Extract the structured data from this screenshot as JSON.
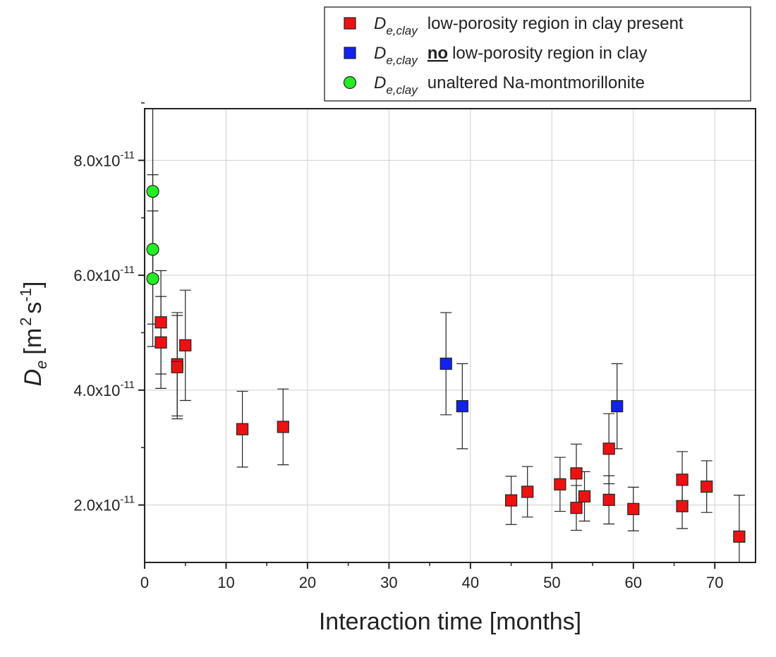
{
  "chart_data": {
    "type": "scatter",
    "xlabel": "Interaction time [months]",
    "ylabel": {
      "symbol": "D",
      "subscript": "e",
      "unit_open": "[m",
      "unit_exp1": "2",
      "unit_mid": "s",
      "unit_exp2": "-1",
      "unit_close": "]"
    },
    "xlim": [
      0,
      75
    ],
    "ylim": [
      1e-11,
      8.9e-11
    ],
    "grid": true,
    "x_ticks": [
      0,
      10,
      20,
      30,
      40,
      50,
      60,
      70
    ],
    "x_tick_labels": [
      "0",
      "10",
      "20",
      "30",
      "40",
      "50",
      "60",
      "70"
    ],
    "y_ticks": [
      {
        "value": 2e-11,
        "mantissa": "2.0x10",
        "exponent": "-11"
      },
      {
        "value": 4e-11,
        "mantissa": "4.0x10",
        "exponent": "-11"
      },
      {
        "value": 6e-11,
        "mantissa": "6.0x10",
        "exponent": "-11"
      },
      {
        "value": 8e-11,
        "mantissa": "8.0x10",
        "exponent": "-11"
      }
    ],
    "legend_position": "top-right, outside plot",
    "series": [
      {
        "name": "low-porosity region in clay present",
        "legend_symbol": "D",
        "legend_subscript": "e,clay",
        "legend_bold": "",
        "legend_text": "low-porosity region in clay present",
        "marker": "square",
        "color": "#ee1111",
        "points": [
          {
            "x": 2,
            "y": 5.18e-11,
            "err": 9e-12
          },
          {
            "x": 2,
            "y": 4.83e-11,
            "err": 8e-12
          },
          {
            "x": 4,
            "y": 4.45e-11,
            "err": 9e-12
          },
          {
            "x": 4,
            "y": 4.4e-11,
            "err": 9e-12
          },
          {
            "x": 5,
            "y": 4.78e-11,
            "err": 9.6e-12
          },
          {
            "x": 12,
            "y": 3.32e-11,
            "err": 6.6e-12
          },
          {
            "x": 17,
            "y": 3.36e-11,
            "err": 6.6e-12
          },
          {
            "x": 45,
            "y": 2.08e-11,
            "err": 4.2e-12
          },
          {
            "x": 47,
            "y": 2.23e-11,
            "err": 4.4e-12
          },
          {
            "x": 51,
            "y": 2.36e-11,
            "err": 4.7e-12
          },
          {
            "x": 53,
            "y": 2.55e-11,
            "err": 5.1e-12
          },
          {
            "x": 53,
            "y": 1.95e-11,
            "err": 3.9e-12
          },
          {
            "x": 54,
            "y": 2.15e-11,
            "err": 4.3e-12
          },
          {
            "x": 57,
            "y": 2.98e-11,
            "err": 6.1e-12
          },
          {
            "x": 57,
            "y": 2.09e-11,
            "err": 4.2e-12
          },
          {
            "x": 60,
            "y": 1.93e-11,
            "err": 3.8e-12
          },
          {
            "x": 66,
            "y": 2.44e-11,
            "err": 4.9e-12
          },
          {
            "x": 66,
            "y": 1.98e-11,
            "err": 3.9e-12
          },
          {
            "x": 69,
            "y": 2.32e-11,
            "err": 4.5e-12
          },
          {
            "x": 73,
            "y": 1.45e-11,
            "err": 7.2e-12
          }
        ]
      },
      {
        "name": "no low-porosity region in clay",
        "legend_symbol": "D",
        "legend_subscript": "e,clay",
        "legend_bold": "no",
        "legend_text": "low-porosity region in clay",
        "marker": "square",
        "color": "#1122ee",
        "points": [
          {
            "x": 37,
            "y": 4.46e-11,
            "err": 8.9e-12
          },
          {
            "x": 39,
            "y": 3.72e-11,
            "err": 7.4e-12
          },
          {
            "x": 58,
            "y": 3.72e-11,
            "err": 7.4e-12
          }
        ]
      },
      {
        "name": "unaltered Na-montmorillonite",
        "legend_symbol": "D",
        "legend_subscript": "e,clay",
        "legend_bold": "",
        "legend_text": "unaltered Na-montmorillonite",
        "marker": "circle",
        "color": "#22ee22",
        "points": [
          {
            "x": 1,
            "y": 7.46e-11,
            "err": 1.47e-11
          },
          {
            "x": 1,
            "y": 6.45e-11,
            "err": 1.3e-11
          },
          {
            "x": 1,
            "y": 5.94e-11,
            "err": 1.18e-11
          }
        ]
      }
    ]
  }
}
